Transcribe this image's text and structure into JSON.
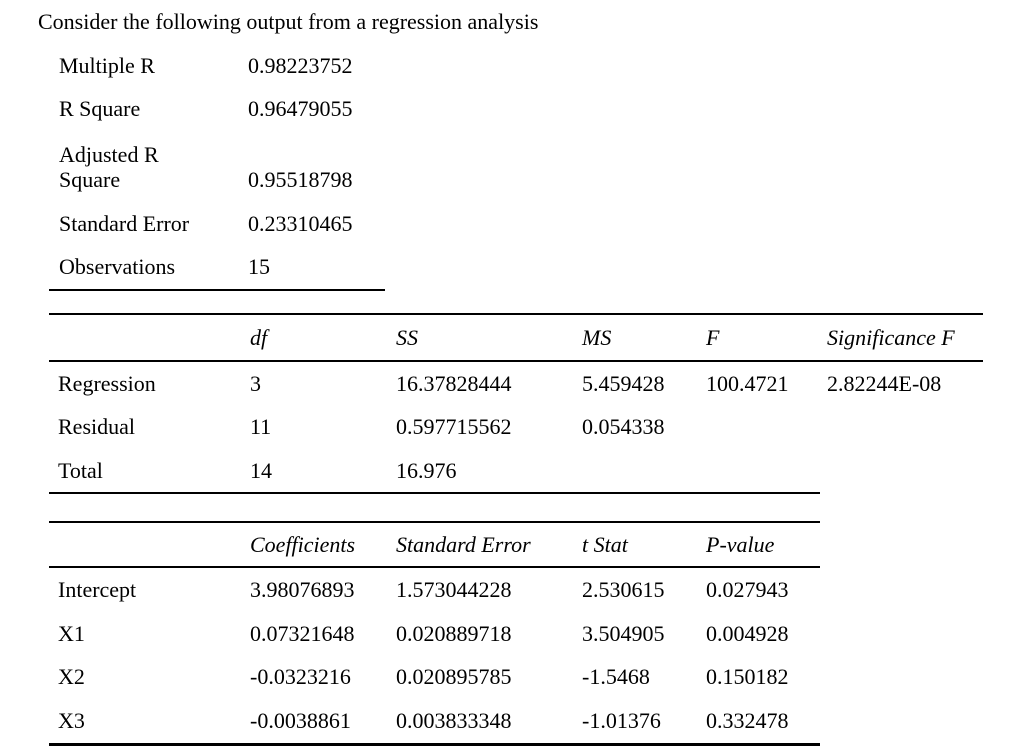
{
  "title": "Consider the following output from a regression analysis",
  "summary": {
    "rows": [
      {
        "label": "Multiple R",
        "value": "0.98223752"
      },
      {
        "label": "R Square",
        "value": "0.96479055"
      },
      {
        "label": "Adjusted R\nSquare",
        "value": "0.95518798"
      },
      {
        "label": "Standard Error",
        "value": "0.23310465"
      },
      {
        "label": "Observations",
        "value": "15"
      }
    ]
  },
  "anova": {
    "headers": [
      "df",
      "SS",
      "MS",
      "F",
      "Significance F"
    ],
    "rows": [
      {
        "label": "Regression",
        "df": "3",
        "ss": "16.37828444",
        "ms": "5.459428",
        "f": "100.4721",
        "sig_f": "2.82244E-08"
      },
      {
        "label": "Residual",
        "df": "11",
        "ss": "0.597715562",
        "ms": "0.054338",
        "f": "",
        "sig_f": ""
      },
      {
        "label": "Total",
        "df": "14",
        "ss": "16.976",
        "ms": "",
        "f": "",
        "sig_f": ""
      }
    ]
  },
  "coefficients": {
    "headers": [
      "Coefficients",
      "Standard Error",
      "t Stat",
      "P-value"
    ],
    "rows": [
      {
        "label": "Intercept",
        "coefficient": "3.98076893",
        "standard_error": "1.573044228",
        "t_stat": "2.530615",
        "p_value": "0.027943"
      },
      {
        "label": "X1",
        "coefficient": "0.07321648",
        "standard_error": "0.020889718",
        "t_stat": "3.504905",
        "p_value": "0.004928"
      },
      {
        "label": "X2",
        "coefficient": "-0.0323216",
        "standard_error": "0.020895785",
        "t_stat": "-1.5468",
        "p_value": "0.150182"
      },
      {
        "label": "X3",
        "coefficient": "-0.0038861",
        "standard_error": "0.003833348",
        "t_stat": "-1.01376",
        "p_value": "0.332478"
      }
    ]
  }
}
